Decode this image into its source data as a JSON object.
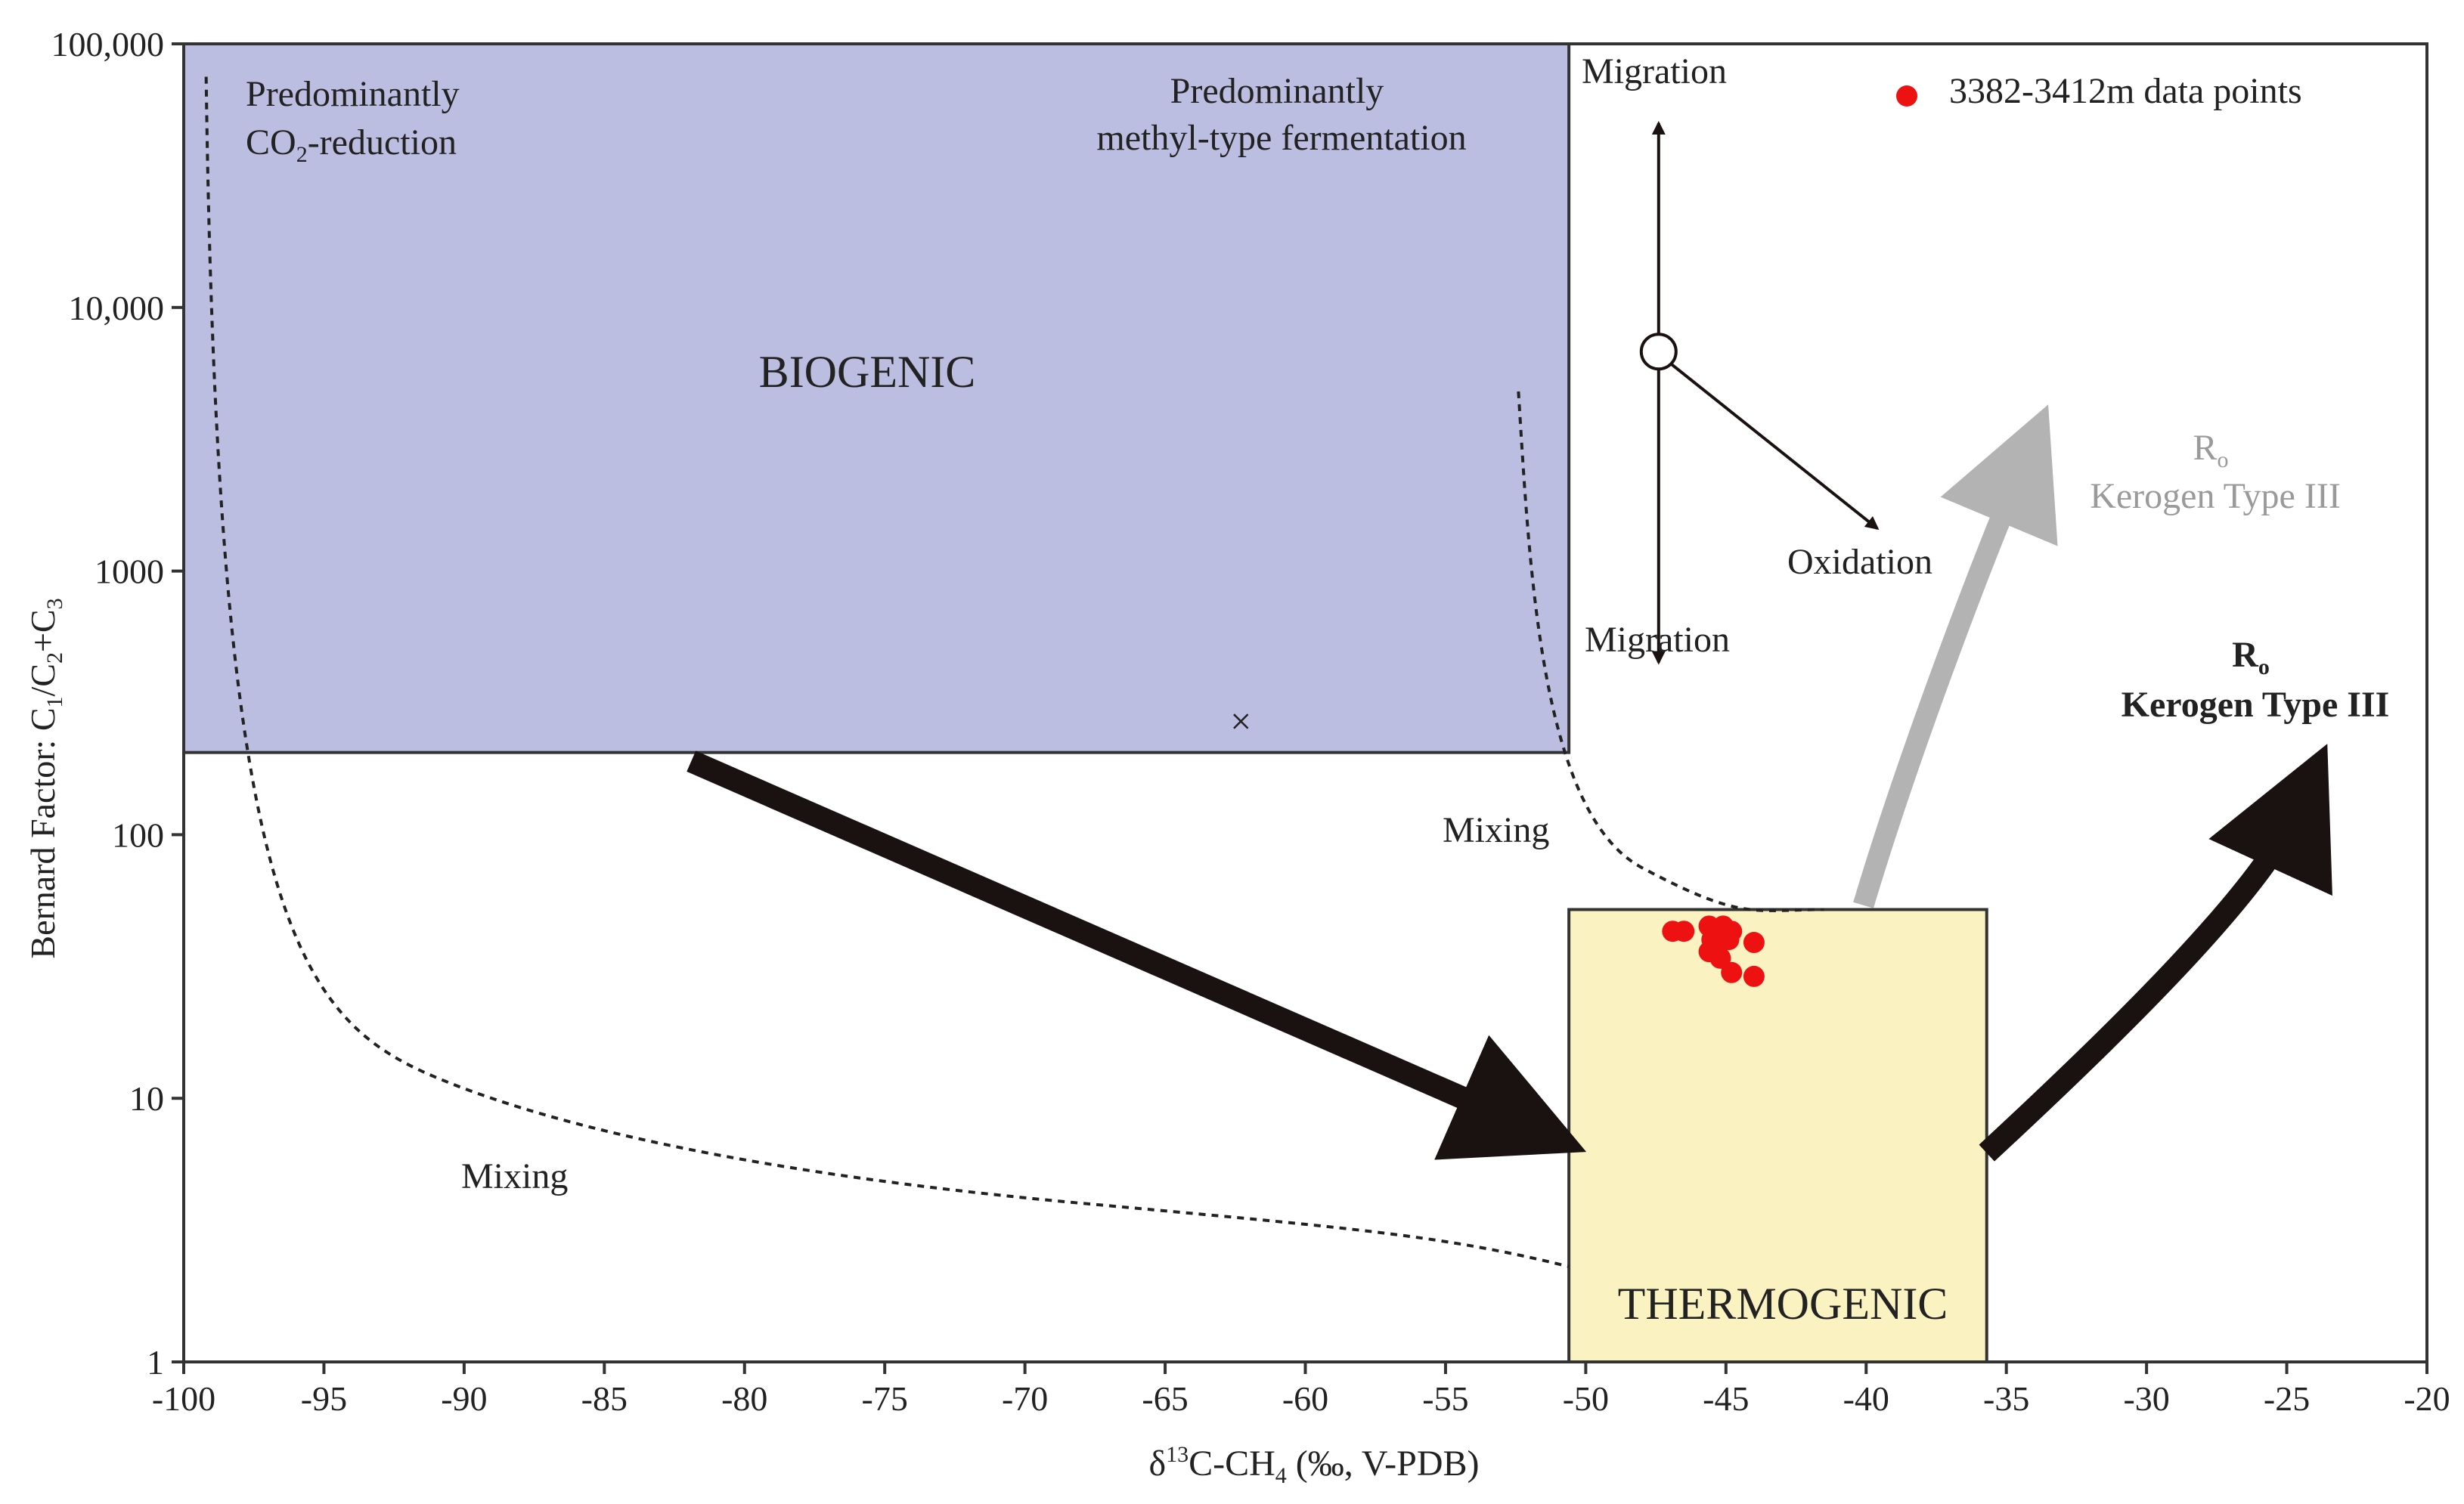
{
  "chart_data": {
    "type": "scatter",
    "xlabel": "δ13C-CH4 (‰, V-PDB)",
    "ylabel": "Bernard Factor: C1/C2+C3",
    "xlim": [
      -100,
      -20
    ],
    "ylim": [
      1,
      100000
    ],
    "y_scale": "log",
    "grid": false,
    "x_ticks": [
      -100,
      -95,
      -90,
      -85,
      -80,
      -75,
      -70,
      -65,
      -60,
      -55,
      -50,
      -45,
      -40,
      -35,
      -30,
      -25,
      -20
    ],
    "x_tick_labels": [
      "-100",
      "-95",
      "-90",
      "-85",
      "-80",
      "-75",
      "-70",
      "-65",
      "-60",
      "-55",
      "-50",
      "-45",
      "-40",
      "-35",
      "-30",
      "-25",
      "-20"
    ],
    "y_ticks": [
      1,
      10,
      100,
      1000,
      10000,
      100000
    ],
    "y_tick_labels": [
      "1",
      "10",
      "100",
      "1000",
      "10,000",
      "100,000"
    ],
    "legend": {
      "placement": "top-right",
      "label": "3382-3412m data points",
      "color": "#ee1111"
    },
    "series": [
      {
        "name": "3382-3412m data points",
        "color": "#ee1111",
        "points": [
          {
            "x": -46.9,
            "y": 43
          },
          {
            "x": -46.5,
            "y": 43
          },
          {
            "x": -45.6,
            "y": 45
          },
          {
            "x": -45.3,
            "y": 44
          },
          {
            "x": -45.1,
            "y": 45
          },
          {
            "x": -44.8,
            "y": 43
          },
          {
            "x": -45.5,
            "y": 40
          },
          {
            "x": -45.2,
            "y": 39
          },
          {
            "x": -44.9,
            "y": 40
          },
          {
            "x": -45.6,
            "y": 36
          },
          {
            "x": -45.2,
            "y": 34
          },
          {
            "x": -44.8,
            "y": 30
          },
          {
            "x": -44.0,
            "y": 39
          },
          {
            "x": -44.0,
            "y": 29
          }
        ]
      }
    ],
    "marker": {
      "x": -62.3,
      "y": 270,
      "symbol": "×"
    },
    "regions": [
      {
        "label": "BIOGENIC",
        "x": [
          -100,
          -50.6
        ],
        "y": [
          205,
          100000
        ],
        "fill": "#bbbde1",
        "stroke": "#333333"
      },
      {
        "label": "THERMOGENIC",
        "x": [
          -50.6,
          -35.7
        ],
        "y": [
          1,
          52
        ],
        "fill": "#fbf2c1",
        "stroke": "#333333"
      }
    ],
    "annotations": {
      "co2_reduction": [
        "Predominantly",
        "CO",
        "2",
        "-reduction"
      ],
      "methyl_fermentation": [
        "Predominantly",
        "methyl-type fermentation"
      ],
      "migration_up": "Migration",
      "migration_down": "Migration",
      "oxidation": "Oxidation",
      "mixing_left": "Mixing",
      "mixing_right": "Mixing",
      "ro_gray": [
        "R",
        "o",
        "Kerogen Type III"
      ],
      "ro_black": [
        "R",
        "o",
        "Kerogen Type III"
      ]
    },
    "colors": {
      "axis": "#333333",
      "arrow_dark": "#1a1210",
      "arrow_gray": "#b3b3b3",
      "text": "#222222",
      "gray_text": "#9a9a9a"
    }
  }
}
